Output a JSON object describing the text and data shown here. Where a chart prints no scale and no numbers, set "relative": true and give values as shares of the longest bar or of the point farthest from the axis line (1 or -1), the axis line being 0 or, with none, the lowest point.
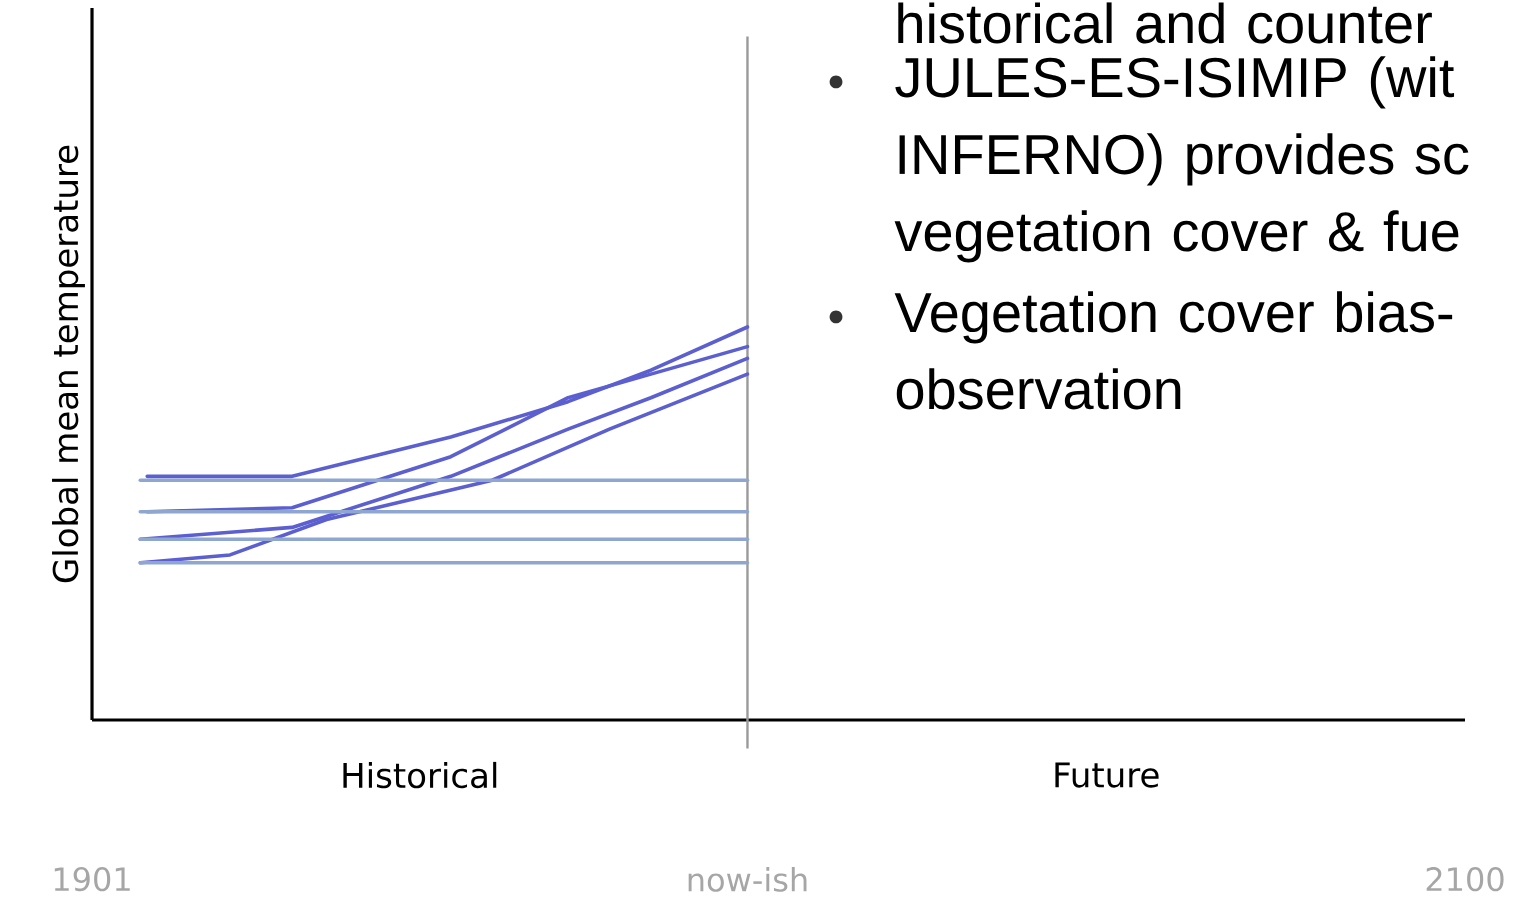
{
  "chart_data": {
    "type": "line",
    "relative": true,
    "ylabel": "Global mean temperature",
    "xlim": [
      1901,
      2100
    ],
    "xticks": [
      1901,
      {
        "value": 1996,
        "label": "now-ish"
      },
      2100
    ],
    "ref_lines": [
      {
        "axis": "x",
        "value": 1996,
        "color": "#9a9a9a"
      }
    ],
    "marker": "none",
    "line_style": "solid",
    "annotations": [
      "Historical",
      "Future",
      "historical and counter",
      "JULES-ES-ISIMIP (wit INFERNO) provides sc vegetation cover & fue",
      "Vegetation cover bias- observation"
    ],
    "series": [
      {
        "color": "#5b5fd0",
        "x": [
          1909,
          1930,
          1953,
          1970,
          1982,
          1996
        ],
        "values": [
          0.62,
          0.62,
          0.72,
          0.81,
          0.89,
          1.0
        ]
      },
      {
        "color": "#5b5fd0",
        "x": [
          1909,
          1930,
          1953,
          1970,
          1982,
          1996
        ],
        "values": [
          0.53,
          0.54,
          0.67,
          0.82,
          0.88,
          0.95
        ]
      },
      {
        "color": "#5b5fd0",
        "x": [
          1908,
          1930,
          1953,
          1970,
          1982,
          1996
        ],
        "values": [
          0.46,
          0.49,
          0.62,
          0.74,
          0.82,
          0.92
        ]
      },
      {
        "color": "#5b5fd0",
        "x": [
          1908,
          1921,
          1935,
          1959,
          1976,
          1996
        ],
        "values": [
          0.4,
          0.42,
          0.51,
          0.61,
          0.74,
          0.88
        ]
      },
      {
        "color": "#8ea6d0",
        "x": [
          1908,
          1996
        ],
        "values": [
          0.61,
          0.61
        ]
      },
      {
        "color": "#8ea6d0",
        "x": [
          1908,
          1996
        ],
        "values": [
          0.53,
          0.53
        ]
      },
      {
        "color": "#8ea6d0",
        "x": [
          1908,
          1996
        ],
        "values": [
          0.46,
          0.46
        ]
      },
      {
        "color": "#8ea6d0",
        "x": [
          1908,
          1996
        ],
        "values": [
          0.4,
          0.4
        ]
      }
    ]
  }
}
